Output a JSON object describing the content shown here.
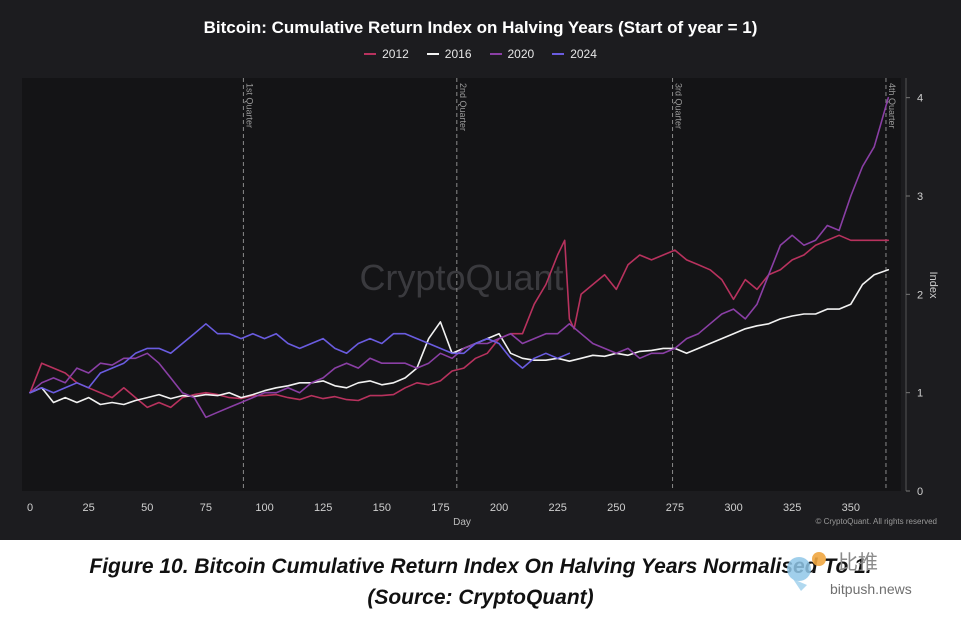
{
  "chart_data": {
    "type": "line",
    "title": "Bitcoin: Cumulative Return Index on Halving Years (Start of year = 1)",
    "xlabel": "Day",
    "ylabel": "Index",
    "xlim": [
      0,
      368
    ],
    "ylim": [
      0,
      4.2
    ],
    "x_ticks": [
      0,
      25,
      50,
      75,
      100,
      125,
      150,
      175,
      200,
      225,
      250,
      275,
      300,
      325,
      350
    ],
    "y_ticks": [
      0,
      1,
      2,
      3,
      4
    ],
    "grid": false,
    "legend_position": "top-center",
    "watermark": "CryptoQuant",
    "copyright": "© CryptoQuant. All rights reserved",
    "quarters": [
      {
        "day": 91,
        "label": "1st Quarter"
      },
      {
        "day": 182,
        "label": "2nd Quarter"
      },
      {
        "day": 274,
        "label": "3rd Quarter"
      },
      {
        "day": 365,
        "label": "4th Quarter"
      }
    ],
    "series": [
      {
        "name": "2012",
        "color": "#b8325e",
        "x": [
          0,
          5,
          10,
          15,
          20,
          25,
          30,
          35,
          40,
          45,
          50,
          55,
          60,
          65,
          70,
          75,
          80,
          85,
          90,
          95,
          100,
          105,
          110,
          115,
          120,
          125,
          130,
          135,
          140,
          145,
          150,
          155,
          160,
          165,
          170,
          175,
          180,
          185,
          190,
          195,
          200,
          205,
          210,
          215,
          220,
          225,
          228,
          230,
          232,
          235,
          240,
          245,
          250,
          255,
          260,
          265,
          270,
          275,
          280,
          285,
          290,
          295,
          300,
          305,
          310,
          315,
          320,
          325,
          330,
          335,
          340,
          345,
          350,
          355,
          360,
          366
        ],
        "values": [
          1.0,
          1.3,
          1.25,
          1.2,
          1.1,
          1.05,
          1.0,
          0.95,
          1.05,
          0.95,
          0.85,
          0.9,
          0.85,
          0.95,
          0.98,
          1.0,
          0.98,
          0.95,
          0.94,
          0.97,
          0.97,
          0.98,
          0.95,
          0.93,
          0.97,
          0.94,
          0.96,
          0.93,
          0.92,
          0.97,
          0.97,
          0.98,
          1.05,
          1.1,
          1.08,
          1.12,
          1.22,
          1.25,
          1.35,
          1.4,
          1.55,
          1.6,
          1.6,
          1.9,
          2.1,
          2.4,
          2.55,
          1.75,
          1.65,
          2.0,
          2.1,
          2.2,
          2.05,
          2.3,
          2.4,
          2.35,
          2.4,
          2.45,
          2.35,
          2.3,
          2.25,
          2.15,
          1.95,
          2.15,
          2.05,
          2.2,
          2.25,
          2.35,
          2.4,
          2.5,
          2.55,
          2.6,
          2.55,
          2.55,
          2.55,
          2.55
        ]
      },
      {
        "name": "2016",
        "color": "#f2f2f2",
        "x": [
          0,
          5,
          10,
          15,
          20,
          25,
          30,
          35,
          40,
          45,
          50,
          55,
          60,
          65,
          70,
          75,
          80,
          85,
          90,
          95,
          100,
          105,
          110,
          115,
          120,
          125,
          130,
          135,
          140,
          145,
          150,
          155,
          160,
          165,
          170,
          175,
          180,
          185,
          190,
          195,
          200,
          205,
          210,
          215,
          220,
          225,
          230,
          235,
          240,
          245,
          250,
          255,
          260,
          265,
          270,
          275,
          280,
          285,
          290,
          295,
          300,
          305,
          310,
          315,
          320,
          325,
          330,
          335,
          340,
          345,
          350,
          355,
          360,
          366
        ],
        "values": [
          1.0,
          1.05,
          0.9,
          0.95,
          0.9,
          0.95,
          0.88,
          0.9,
          0.88,
          0.92,
          0.95,
          0.98,
          0.94,
          0.97,
          0.96,
          0.98,
          0.97,
          1.0,
          0.95,
          0.98,
          1.02,
          1.05,
          1.07,
          1.1,
          1.1,
          1.12,
          1.07,
          1.05,
          1.1,
          1.12,
          1.08,
          1.1,
          1.15,
          1.25,
          1.55,
          1.72,
          1.4,
          1.45,
          1.5,
          1.55,
          1.6,
          1.4,
          1.35,
          1.33,
          1.33,
          1.35,
          1.32,
          1.35,
          1.38,
          1.37,
          1.4,
          1.38,
          1.42,
          1.43,
          1.45,
          1.45,
          1.4,
          1.45,
          1.5,
          1.55,
          1.6,
          1.65,
          1.68,
          1.7,
          1.75,
          1.78,
          1.8,
          1.8,
          1.85,
          1.85,
          1.9,
          2.1,
          2.2,
          2.25
        ]
      },
      {
        "name": "2020",
        "color": "#8a3fa5",
        "x": [
          0,
          5,
          10,
          15,
          20,
          25,
          30,
          35,
          40,
          45,
          50,
          55,
          60,
          65,
          70,
          75,
          80,
          85,
          90,
          95,
          100,
          105,
          110,
          115,
          120,
          125,
          130,
          135,
          140,
          145,
          150,
          155,
          160,
          165,
          170,
          175,
          180,
          185,
          190,
          195,
          200,
          205,
          210,
          215,
          220,
          225,
          230,
          235,
          240,
          245,
          250,
          255,
          260,
          265,
          270,
          275,
          280,
          285,
          290,
          295,
          300,
          305,
          310,
          315,
          320,
          325,
          330,
          335,
          340,
          345,
          350,
          355,
          360,
          363,
          366
        ],
        "values": [
          1.0,
          1.1,
          1.15,
          1.1,
          1.25,
          1.2,
          1.3,
          1.28,
          1.35,
          1.35,
          1.4,
          1.3,
          1.15,
          1.0,
          0.95,
          0.75,
          0.8,
          0.85,
          0.9,
          0.95,
          1.0,
          1.0,
          1.05,
          1.0,
          1.1,
          1.15,
          1.25,
          1.3,
          1.25,
          1.35,
          1.3,
          1.3,
          1.3,
          1.25,
          1.3,
          1.4,
          1.35,
          1.45,
          1.5,
          1.5,
          1.55,
          1.6,
          1.5,
          1.55,
          1.6,
          1.6,
          1.7,
          1.6,
          1.5,
          1.45,
          1.4,
          1.45,
          1.35,
          1.4,
          1.4,
          1.45,
          1.55,
          1.6,
          1.7,
          1.8,
          1.85,
          1.75,
          1.9,
          2.2,
          2.5,
          2.6,
          2.5,
          2.55,
          2.7,
          2.65,
          3.0,
          3.3,
          3.5,
          3.75,
          4.0
        ]
      },
      {
        "name": "2024",
        "color": "#6a5ce0",
        "x": [
          0,
          5,
          10,
          15,
          20,
          25,
          30,
          35,
          40,
          45,
          50,
          55,
          60,
          65,
          70,
          75,
          80,
          85,
          90,
          95,
          100,
          105,
          110,
          115,
          120,
          125,
          130,
          135,
          140,
          145,
          150,
          155,
          160,
          165,
          170,
          175,
          180,
          185,
          190,
          195,
          200,
          205,
          210,
          215,
          220,
          225,
          230
        ],
        "values": [
          1.0,
          1.05,
          1.0,
          1.05,
          1.1,
          1.05,
          1.2,
          1.25,
          1.3,
          1.4,
          1.45,
          1.45,
          1.4,
          1.5,
          1.6,
          1.7,
          1.6,
          1.6,
          1.55,
          1.6,
          1.55,
          1.6,
          1.5,
          1.45,
          1.5,
          1.55,
          1.45,
          1.4,
          1.5,
          1.55,
          1.5,
          1.6,
          1.6,
          1.55,
          1.5,
          1.45,
          1.4,
          1.4,
          1.5,
          1.55,
          1.5,
          1.35,
          1.25,
          1.35,
          1.4,
          1.35,
          1.4
        ]
      }
    ]
  },
  "caption": {
    "line1": "Figure 10.  Bitcoin Cumulative Return Index On Halving Years Normalised To 1.",
    "line2": "(Source: CryptoQuant)"
  },
  "site_watermark": {
    "cn": "比推",
    "domain": "bitpush.news"
  }
}
